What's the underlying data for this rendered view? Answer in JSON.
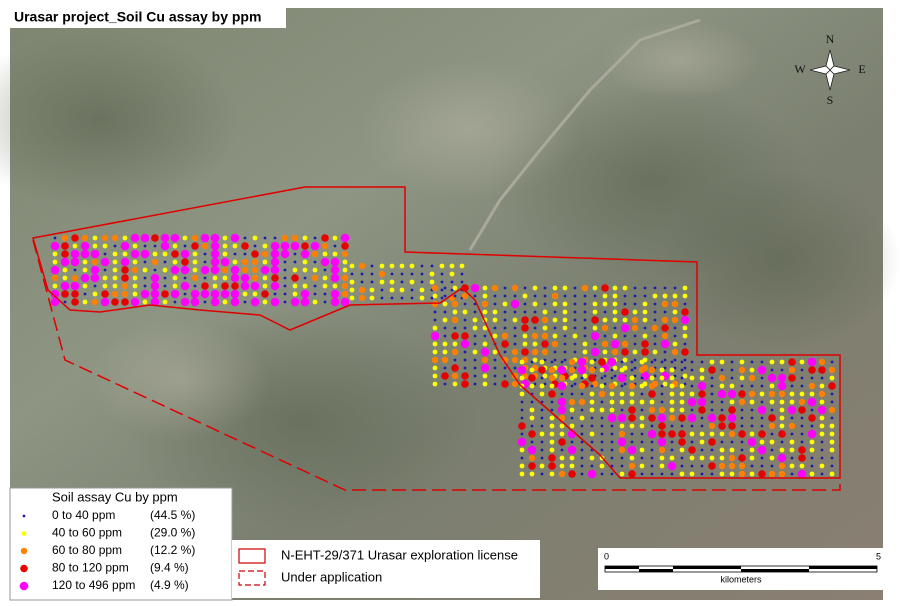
{
  "title": "Urasar project_Soil Cu assay by ppm",
  "compass": {
    "n": "N",
    "s": "S",
    "e": "E",
    "w": "W"
  },
  "legend": {
    "title": "Soil assay Cu by ppm",
    "items": [
      {
        "label": "0 to 40 ppm",
        "percent": "(44.5 %)",
        "color": "#1c1ca8"
      },
      {
        "label": "40 to 60 ppm",
        "percent": "(29.0 %)",
        "color": "#ffff00"
      },
      {
        "label": "60 to 80 ppm",
        "percent": "(12.2 %)",
        "color": "#ff8000"
      },
      {
        "label": "80 to 120 ppm",
        "percent": "(9.4 %)",
        "color": "#e60000"
      },
      {
        "label": "120 to 496 ppm",
        "percent": "(4.9 %)",
        "color": "#ff00ff"
      }
    ]
  },
  "license_legend": {
    "items": [
      "N-EHT-29/371 Urasar exploration license",
      "Under application"
    ]
  },
  "scale": {
    "start": "0",
    "end": "5",
    "unit": "kilometers"
  }
}
